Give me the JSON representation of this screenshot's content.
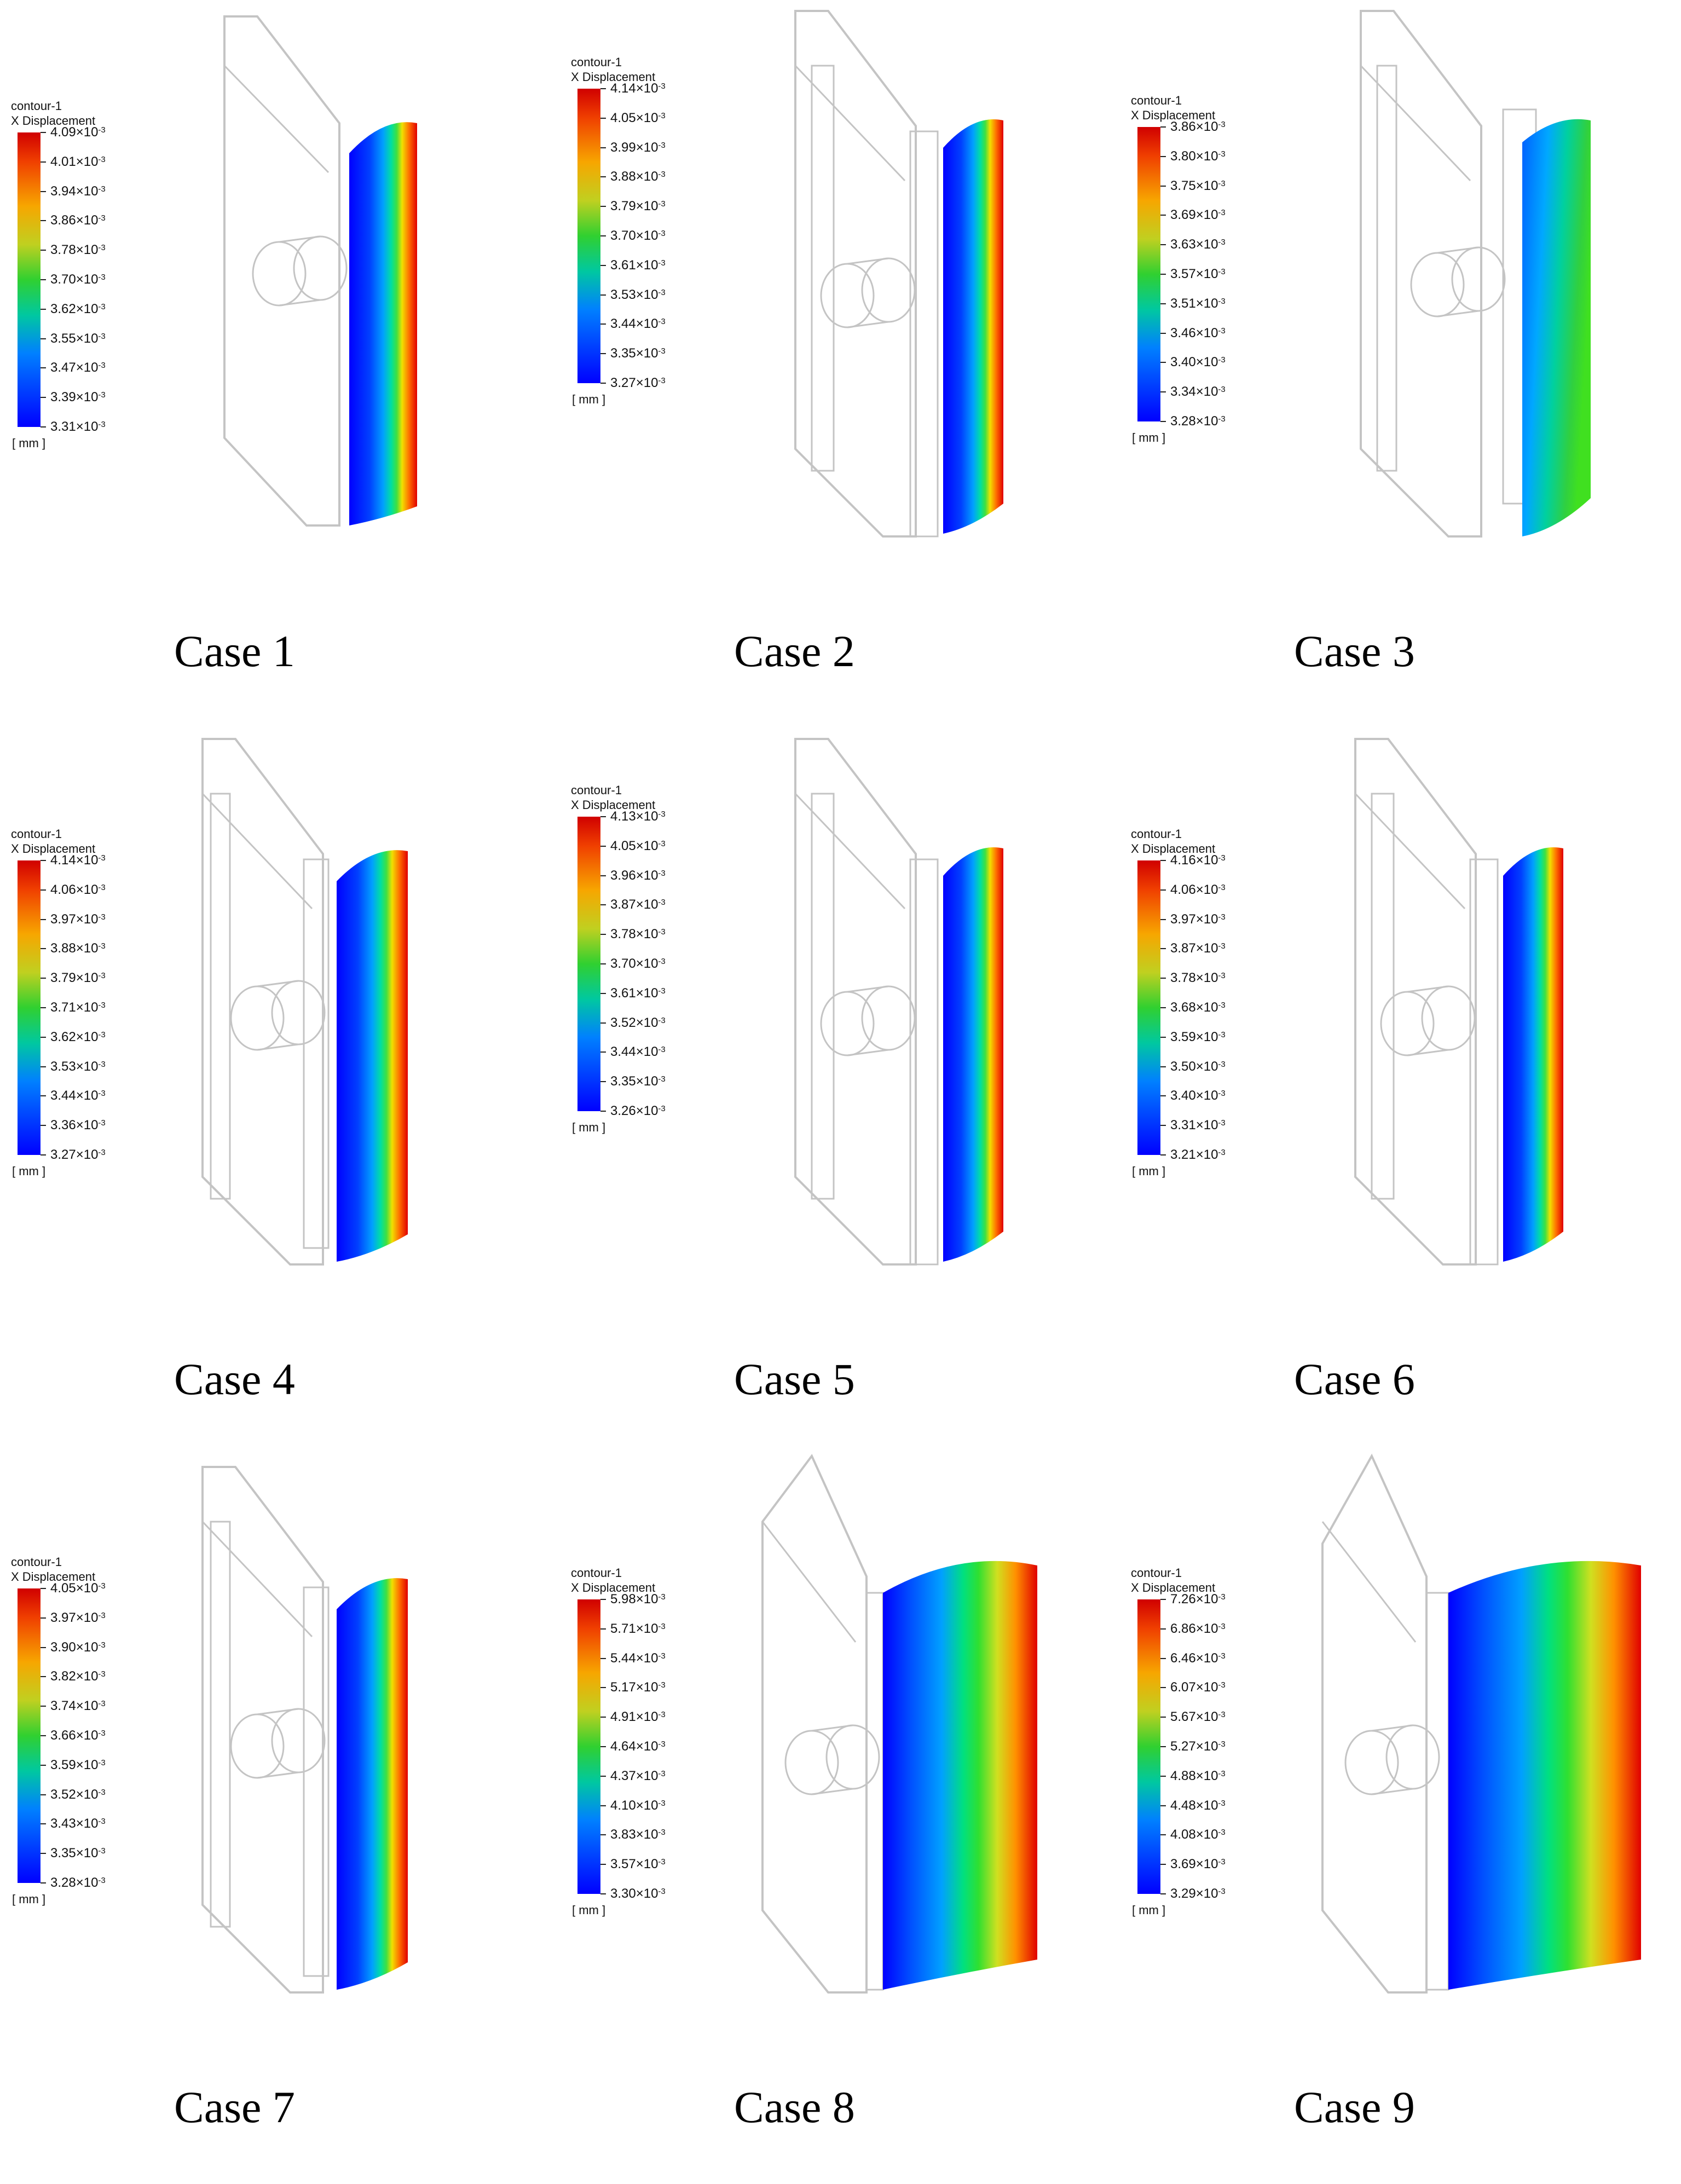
{
  "figure": {
    "panels": [
      {
        "caption": "Case 1",
        "legend_title": "contour-1",
        "legend_quantity": "X Displacement",
        "unit": "[ mm ]",
        "model": "A",
        "panel_span": 1,
        "ticks": [
          "4.09",
          "4.01",
          "3.94",
          "3.86",
          "3.78",
          "3.70",
          "3.62",
          "3.55",
          "3.47",
          "3.39",
          "3.31"
        ],
        "exponent": "-3"
      },
      {
        "caption": "Case 2",
        "legend_title": "contour-1",
        "legend_quantity": "X Displacement",
        "unit": "[ mm ]",
        "model": "B",
        "panel_span": 1,
        "ticks": [
          "4.14",
          "4.05",
          "3.99",
          "3.88",
          "3.79",
          "3.70",
          "3.61",
          "3.53",
          "3.44",
          "3.35",
          "3.27"
        ],
        "exponent": "-3"
      },
      {
        "caption": "Case 3",
        "legend_title": "contour-1",
        "legend_quantity": "X Displacement",
        "unit": "[ mm ]",
        "model": "C",
        "panel_span": 1,
        "ticks": [
          "3.86",
          "3.80",
          "3.75",
          "3.69",
          "3.63",
          "3.57",
          "3.51",
          "3.46",
          "3.40",
          "3.34",
          "3.28"
        ],
        "exponent": "-3"
      },
      {
        "caption": "Case 4",
        "legend_title": "contour-1",
        "legend_quantity": "X Displacement",
        "unit": "[ mm ]",
        "model": "D",
        "panel_span": 1,
        "ticks": [
          "4.14",
          "4.06",
          "3.97",
          "3.88",
          "3.79",
          "3.71",
          "3.62",
          "3.53",
          "3.44",
          "3.36",
          "3.27"
        ],
        "exponent": "-3"
      },
      {
        "caption": "Case 5",
        "legend_title": "contour-1",
        "legend_quantity": "X Displacement",
        "unit": "[ mm ]",
        "model": "B",
        "panel_span": 1,
        "ticks": [
          "4.13",
          "4.05",
          "3.96",
          "3.87",
          "3.78",
          "3.70",
          "3.61",
          "3.52",
          "3.44",
          "3.35",
          "3.26"
        ],
        "exponent": "-3"
      },
      {
        "caption": "Case 6",
        "legend_title": "contour-1",
        "legend_quantity": "X Displacement",
        "unit": "[ mm ]",
        "model": "B",
        "panel_span": 1,
        "ticks": [
          "4.16",
          "4.06",
          "3.97",
          "3.87",
          "3.78",
          "3.68",
          "3.59",
          "3.50",
          "3.40",
          "3.31",
          "3.21"
        ],
        "exponent": "-3"
      },
      {
        "caption": "Case 7",
        "legend_title": "contour-1",
        "legend_quantity": "X Displacement",
        "unit": "[ mm ]",
        "model": "D",
        "panel_span": 1,
        "ticks": [
          "4.05",
          "3.97",
          "3.90",
          "3.82",
          "3.74",
          "3.66",
          "3.59",
          "3.52",
          "3.43",
          "3.35",
          "3.28"
        ],
        "exponent": "-3"
      },
      {
        "caption": "Case 8",
        "legend_title": "contour-1",
        "legend_quantity": "X Displacement",
        "unit": "[ mm ]",
        "model": "E",
        "panel_span": 1,
        "ticks": [
          "5.98",
          "5.71",
          "5.44",
          "5.17",
          "4.91",
          "4.64",
          "4.37",
          "4.10",
          "3.83",
          "3.57",
          "3.30"
        ],
        "exponent": "-3"
      },
      {
        "caption": "Case 9",
        "legend_title": "contour-1",
        "legend_quantity": "X Displacement",
        "unit": "[ mm ]",
        "model": "F",
        "panel_span": 1,
        "ticks": [
          "7.26",
          "6.86",
          "6.46",
          "6.07",
          "5.67",
          "5.27",
          "4.88",
          "4.48",
          "4.08",
          "3.69",
          "3.29"
        ],
        "exponent": "-3"
      }
    ],
    "colors": {
      "low": "#0000ff",
      "mid": "#30d030",
      "high": "#d00000",
      "outline": "#c4c4c4"
    }
  }
}
